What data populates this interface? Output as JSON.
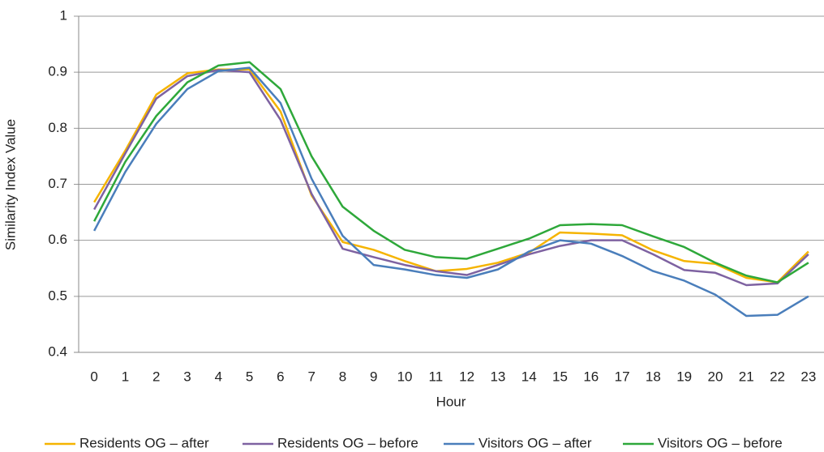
{
  "chart_data": {
    "type": "line",
    "x_label": "Hour",
    "y_label": "Similarity Index Value",
    "categories": [
      "0",
      "1",
      "2",
      "3",
      "4",
      "5",
      "6",
      "7",
      "8",
      "9",
      "10",
      "11",
      "12",
      "13",
      "14",
      "15",
      "16",
      "17",
      "18",
      "19",
      "20",
      "21",
      "22",
      "23"
    ],
    "ylim": [
      0.4,
      1
    ],
    "yticks": [
      0.4,
      0.5,
      0.6,
      0.7,
      0.8,
      0.9,
      1
    ],
    "grid": true,
    "legend": "bottom",
    "series": [
      {
        "name": "Residents OG – after",
        "color": "#f5b400",
        "values": [
          0.668,
          0.76,
          0.86,
          0.898,
          0.905,
          0.905,
          0.83,
          0.68,
          0.597,
          0.583,
          0.563,
          0.545,
          0.549,
          0.56,
          0.578,
          0.614,
          0.612,
          0.609,
          0.582,
          0.563,
          0.558,
          0.533,
          0.525,
          0.58
        ]
      },
      {
        "name": "Residents OG – before",
        "color": "#7e62a1",
        "values": [
          0.655,
          0.755,
          0.853,
          0.893,
          0.904,
          0.9,
          0.815,
          0.683,
          0.585,
          0.57,
          0.556,
          0.545,
          0.538,
          0.556,
          0.575,
          0.59,
          0.6,
          0.6,
          0.575,
          0.547,
          0.542,
          0.52,
          0.523,
          0.575
        ]
      },
      {
        "name": "Visitors OG – after",
        "color": "#4a7ebb",
        "values": [
          0.617,
          0.722,
          0.808,
          0.87,
          0.902,
          0.908,
          0.845,
          0.71,
          0.608,
          0.556,
          0.548,
          0.538,
          0.533,
          0.548,
          0.58,
          0.6,
          0.594,
          0.572,
          0.545,
          0.528,
          0.503,
          0.465,
          0.467,
          0.5
        ]
      },
      {
        "name": "Visitors OG – before",
        "color": "#2ea83a",
        "values": [
          0.634,
          0.74,
          0.822,
          0.882,
          0.912,
          0.918,
          0.87,
          0.75,
          0.66,
          0.617,
          0.583,
          0.57,
          0.567,
          0.585,
          0.603,
          0.627,
          0.629,
          0.627,
          0.607,
          0.588,
          0.56,
          0.537,
          0.525,
          0.56
        ]
      }
    ]
  }
}
